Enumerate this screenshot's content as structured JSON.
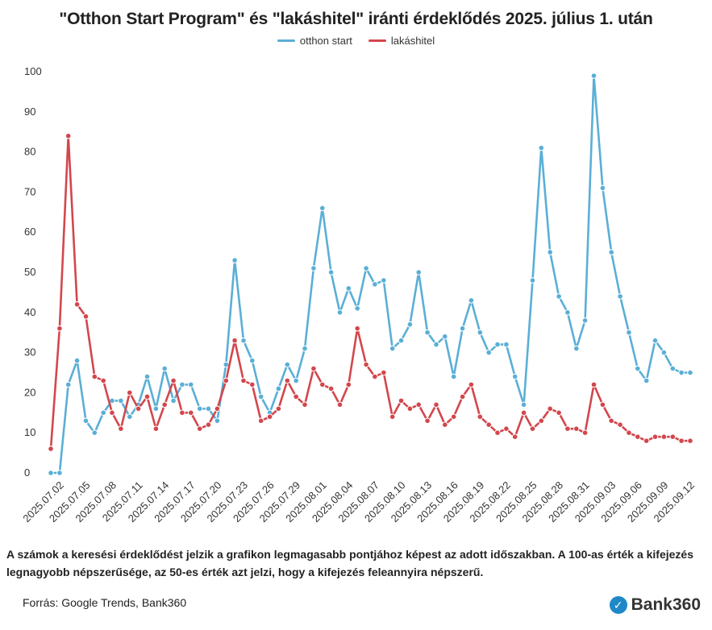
{
  "chart_data": {
    "type": "line",
    "title": "\"Otthon Start Program\" és \"lakáshitel\" iránti érdeklődés 2025. július 1. után",
    "xlabel": "",
    "ylabel": "",
    "ylim": [
      0,
      100
    ],
    "yticks": [
      0,
      10,
      20,
      30,
      40,
      50,
      60,
      70,
      80,
      90,
      100
    ],
    "grid": false,
    "legend_position": "top-center",
    "tick_labels": [
      "2025.07.02",
      "2025.07.05",
      "2025.07.08",
      "2025.07.11",
      "2025.07.14",
      "2025.07.17",
      "2025.07.20",
      "2025.07.23",
      "2025.07.26",
      "2025.07.29",
      "2025.08.01",
      "2025.08.04",
      "2025.08.07",
      "2025.08.10",
      "2025.08.13",
      "2025.08.16",
      "2025.08.19",
      "2025.08.22",
      "2025.08.25",
      "2025.08.28",
      "2025.08.31",
      "2025.09.03",
      "2025.09.06",
      "2025.09.09",
      "2025.09.12"
    ],
    "x": [
      "2025.07.01",
      "2025.07.02",
      "2025.07.03",
      "2025.07.04",
      "2025.07.05",
      "2025.07.06",
      "2025.07.07",
      "2025.07.08",
      "2025.07.09",
      "2025.07.10",
      "2025.07.11",
      "2025.07.12",
      "2025.07.13",
      "2025.07.14",
      "2025.07.15",
      "2025.07.16",
      "2025.07.17",
      "2025.07.18",
      "2025.07.19",
      "2025.07.20",
      "2025.07.21",
      "2025.07.22",
      "2025.07.23",
      "2025.07.24",
      "2025.07.25",
      "2025.07.26",
      "2025.07.27",
      "2025.07.28",
      "2025.07.29",
      "2025.07.30",
      "2025.07.31",
      "2025.08.01",
      "2025.08.02",
      "2025.08.03",
      "2025.08.04",
      "2025.08.05",
      "2025.08.06",
      "2025.08.07",
      "2025.08.08",
      "2025.08.09",
      "2025.08.10",
      "2025.08.11",
      "2025.08.12",
      "2025.08.13",
      "2025.08.14",
      "2025.08.15",
      "2025.08.16",
      "2025.08.17",
      "2025.08.18",
      "2025.08.19",
      "2025.08.20",
      "2025.08.21",
      "2025.08.22",
      "2025.08.23",
      "2025.08.24",
      "2025.08.25",
      "2025.08.26",
      "2025.08.27",
      "2025.08.28",
      "2025.08.29",
      "2025.08.30",
      "2025.08.31",
      "2025.09.01",
      "2025.09.02",
      "2025.09.03",
      "2025.09.04",
      "2025.09.05",
      "2025.09.06",
      "2025.09.07",
      "2025.09.08",
      "2025.09.09",
      "2025.09.10",
      "2025.09.11",
      "2025.09.12"
    ],
    "series": [
      {
        "name": "otthon start",
        "color": "#5aafd6",
        "values": [
          0,
          0,
          22,
          28,
          13,
          10,
          15,
          18,
          18,
          14,
          17,
          24,
          16,
          26,
          18,
          22,
          22,
          16,
          16,
          13,
          27,
          53,
          33,
          28,
          19,
          15,
          21,
          27,
          23,
          31,
          51,
          66,
          50,
          40,
          46,
          41,
          51,
          47,
          48,
          31,
          33,
          37,
          50,
          35,
          32,
          34,
          24,
          36,
          43,
          35,
          30,
          32,
          32,
          24,
          17,
          48,
          81,
          55,
          44,
          40,
          31,
          38,
          99,
          71,
          55,
          44,
          35,
          26,
          23,
          33,
          30,
          26,
          25,
          25
        ]
      },
      {
        "name": "lakáshitel",
        "color": "#d2474d",
        "values": [
          6,
          36,
          84,
          42,
          39,
          24,
          23,
          15,
          11,
          20,
          16,
          19,
          11,
          17,
          23,
          15,
          15,
          11,
          12,
          16,
          23,
          33,
          23,
          22,
          13,
          14,
          16,
          23,
          19,
          17,
          26,
          22,
          21,
          17,
          22,
          36,
          27,
          24,
          25,
          14,
          18,
          16,
          17,
          13,
          17,
          12,
          14,
          19,
          22,
          14,
          12,
          10,
          11,
          9,
          15,
          11,
          13,
          16,
          15,
          11,
          11,
          10,
          22,
          17,
          13,
          12,
          10,
          9,
          8,
          9,
          9,
          9,
          8,
          8
        ]
      }
    ]
  },
  "note": "A számok a keresési érdeklődést jelzik a grafikon legmagasabb pontjához képest az adott időszakban. A 100-as érték a kifejezés legnagyobb népszerűsége, az 50-es érték azt jelzi, hogy a kifejezés feleannyira népszerű.",
  "source": "Forrás: Google Trends, Bank360",
  "brand": {
    "icon": "bank360-logo-icon",
    "name": "Bank360",
    "color": "#1e88c8"
  }
}
